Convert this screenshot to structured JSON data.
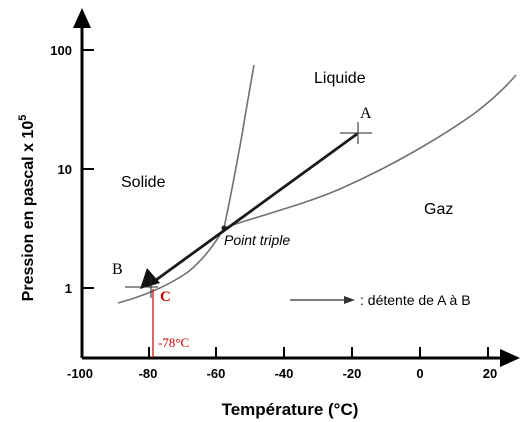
{
  "axes": {
    "x_label": "Température (°C)",
    "y_label": "Pression en pascal x 10",
    "y_label_exponent": "5",
    "x_ticks": [
      "-100",
      "-80",
      "-60",
      "-40",
      "-20",
      "0",
      "20"
    ],
    "y_ticks": [
      "100",
      "10",
      "1"
    ]
  },
  "regions": {
    "solid": "Solide",
    "liquid": "Liquide",
    "gas": "Gaz"
  },
  "triple_point_label": "Point triple",
  "points": {
    "A": "A",
    "B": "B",
    "C": "C"
  },
  "temperature_marker": "-78°C",
  "legend": ": détente de A à B",
  "colors": {
    "curve": "#707070",
    "axis": "#000000",
    "arrow": "#1a1a1a",
    "marker_red": "#cc0000"
  }
}
